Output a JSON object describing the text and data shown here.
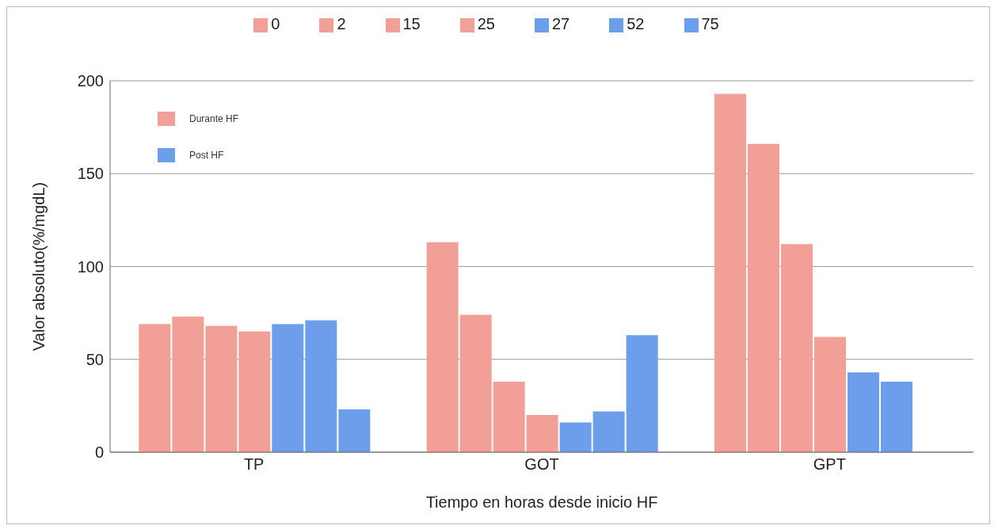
{
  "chart_data": {
    "type": "bar",
    "xlabel": "Tiempo en horas desde inicio HF",
    "ylabel": "Valor absoluto(%/mgdL)",
    "categories": [
      "TP",
      "GOT",
      "GPT"
    ],
    "series": [
      {
        "name": "0",
        "color": "#f29f98",
        "values": [
          69,
          113,
          193
        ]
      },
      {
        "name": "2",
        "color": "#f29f98",
        "values": [
          73,
          74,
          166
        ]
      },
      {
        "name": "15",
        "color": "#f29f98",
        "values": [
          68,
          38,
          112
        ]
      },
      {
        "name": "25",
        "color": "#f29f98",
        "values": [
          65,
          20,
          62
        ]
      },
      {
        "name": "27",
        "color": "#6d9eeb",
        "values": [
          69,
          16,
          43
        ]
      },
      {
        "name": "52",
        "color": "#6d9eeb",
        "values": [
          71,
          22,
          38
        ]
      },
      {
        "name": "75",
        "color": "#6d9eeb",
        "values": [
          23,
          63,
          null
        ]
      }
    ],
    "ylim": [
      0,
      200
    ],
    "yticks": [
      0,
      50,
      100,
      150,
      200
    ],
    "grid": "y",
    "legend": "top",
    "annotations": [
      "Durante HF",
      "Post HF"
    ]
  }
}
